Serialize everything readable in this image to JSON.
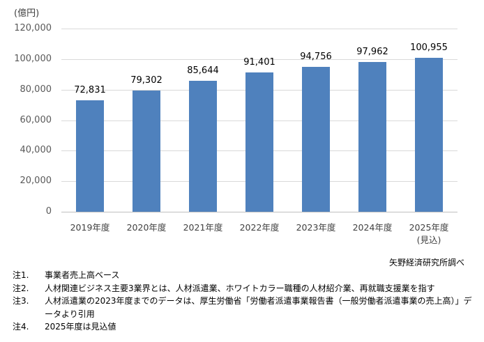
{
  "chart_data": {
    "type": "bar",
    "title": "",
    "unit_label": "(億円)",
    "xlabel": "",
    "ylabel": "(億円)",
    "categories": [
      "2019年度",
      "2020年度",
      "2021年度",
      "2022年度",
      "2023年度",
      "2024年度",
      "2025年度"
    ],
    "category_sublabels": [
      "",
      "",
      "",
      "",
      "",
      "",
      "(見込)"
    ],
    "values": [
      72831,
      79302,
      85644,
      91401,
      94756,
      97962,
      100955
    ],
    "value_labels": [
      "72,831",
      "79,302",
      "85,644",
      "91,401",
      "94,756",
      "97,962",
      "100,955"
    ],
    "ylim": [
      0,
      120000
    ],
    "yticks": [
      0,
      20000,
      40000,
      60000,
      80000,
      100000,
      120000
    ],
    "ytick_labels": [
      "0",
      "20,000",
      "40,000",
      "60,000",
      "80,000",
      "100,000",
      "120,000"
    ],
    "grid": true,
    "legend": null,
    "bar_color": "#4F81BD"
  },
  "source": "矢野経済研究所調べ",
  "notes": [
    {
      "key": "注1.",
      "text": "事業者売上高ベース"
    },
    {
      "key": "注2.",
      "text": "人材関連ビジネス主要3業界とは、人材派遣業、ホワイトカラー職種の人材紹介業、再就職支援業を指す"
    },
    {
      "key": "注3.",
      "text": "人材派遣業の2023年度までのデータは、厚生労働省「労働者派遣事業報告書（一般労働者派遣事業の売上高）」データより引用"
    },
    {
      "key": "注4.",
      "text": "2025年度は見込値"
    }
  ]
}
